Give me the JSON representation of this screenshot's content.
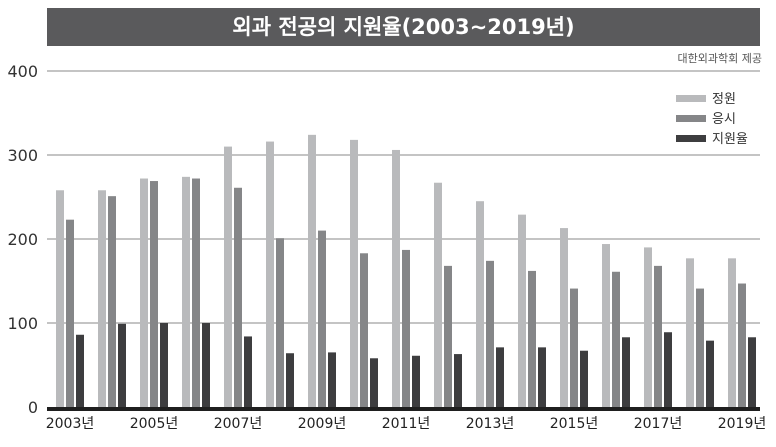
{
  "chart_data": {
    "type": "bar",
    "title": "외과 전공의 지원율(2003∼2019년)",
    "source": "대한외과학회 제공",
    "categories": [
      "2003",
      "2004",
      "2005",
      "2006",
      "2007",
      "2008",
      "2009",
      "2010",
      "2011",
      "2012",
      "2013",
      "2014",
      "2015",
      "2016",
      "2017",
      "2018",
      "2019"
    ],
    "xtick_labels": [
      "2003년",
      "2005년",
      "2007년",
      "2009년",
      "2011년",
      "2013년",
      "2015년",
      "2017년",
      "2019년"
    ],
    "xtick_categories": [
      "2003",
      "2005",
      "2007",
      "2009",
      "2011",
      "2013",
      "2015",
      "2017",
      "2019"
    ],
    "yticks": [
      0,
      100,
      200,
      300,
      400
    ],
    "ylim": [
      0,
      400
    ],
    "grid": true,
    "legend_position": "top-right",
    "series": [
      {
        "name": "정원",
        "color": "#b9babc",
        "values": [
          258,
          258,
          272,
          274,
          310,
          316,
          324,
          318,
          306,
          267,
          245,
          229,
          213,
          194,
          190,
          177,
          177
        ]
      },
      {
        "name": "응시",
        "color": "#858688",
        "values": [
          223,
          251,
          269,
          272,
          261,
          201,
          210,
          183,
          187,
          168,
          174,
          162,
          141,
          161,
          168,
          141,
          147
        ]
      },
      {
        "name": "지원율",
        "color": "#3d3d3f",
        "values": [
          86,
          99,
          100,
          100,
          84,
          64,
          65,
          58,
          61,
          63,
          71,
          71,
          67,
          83,
          89,
          79,
          83
        ]
      }
    ]
  }
}
